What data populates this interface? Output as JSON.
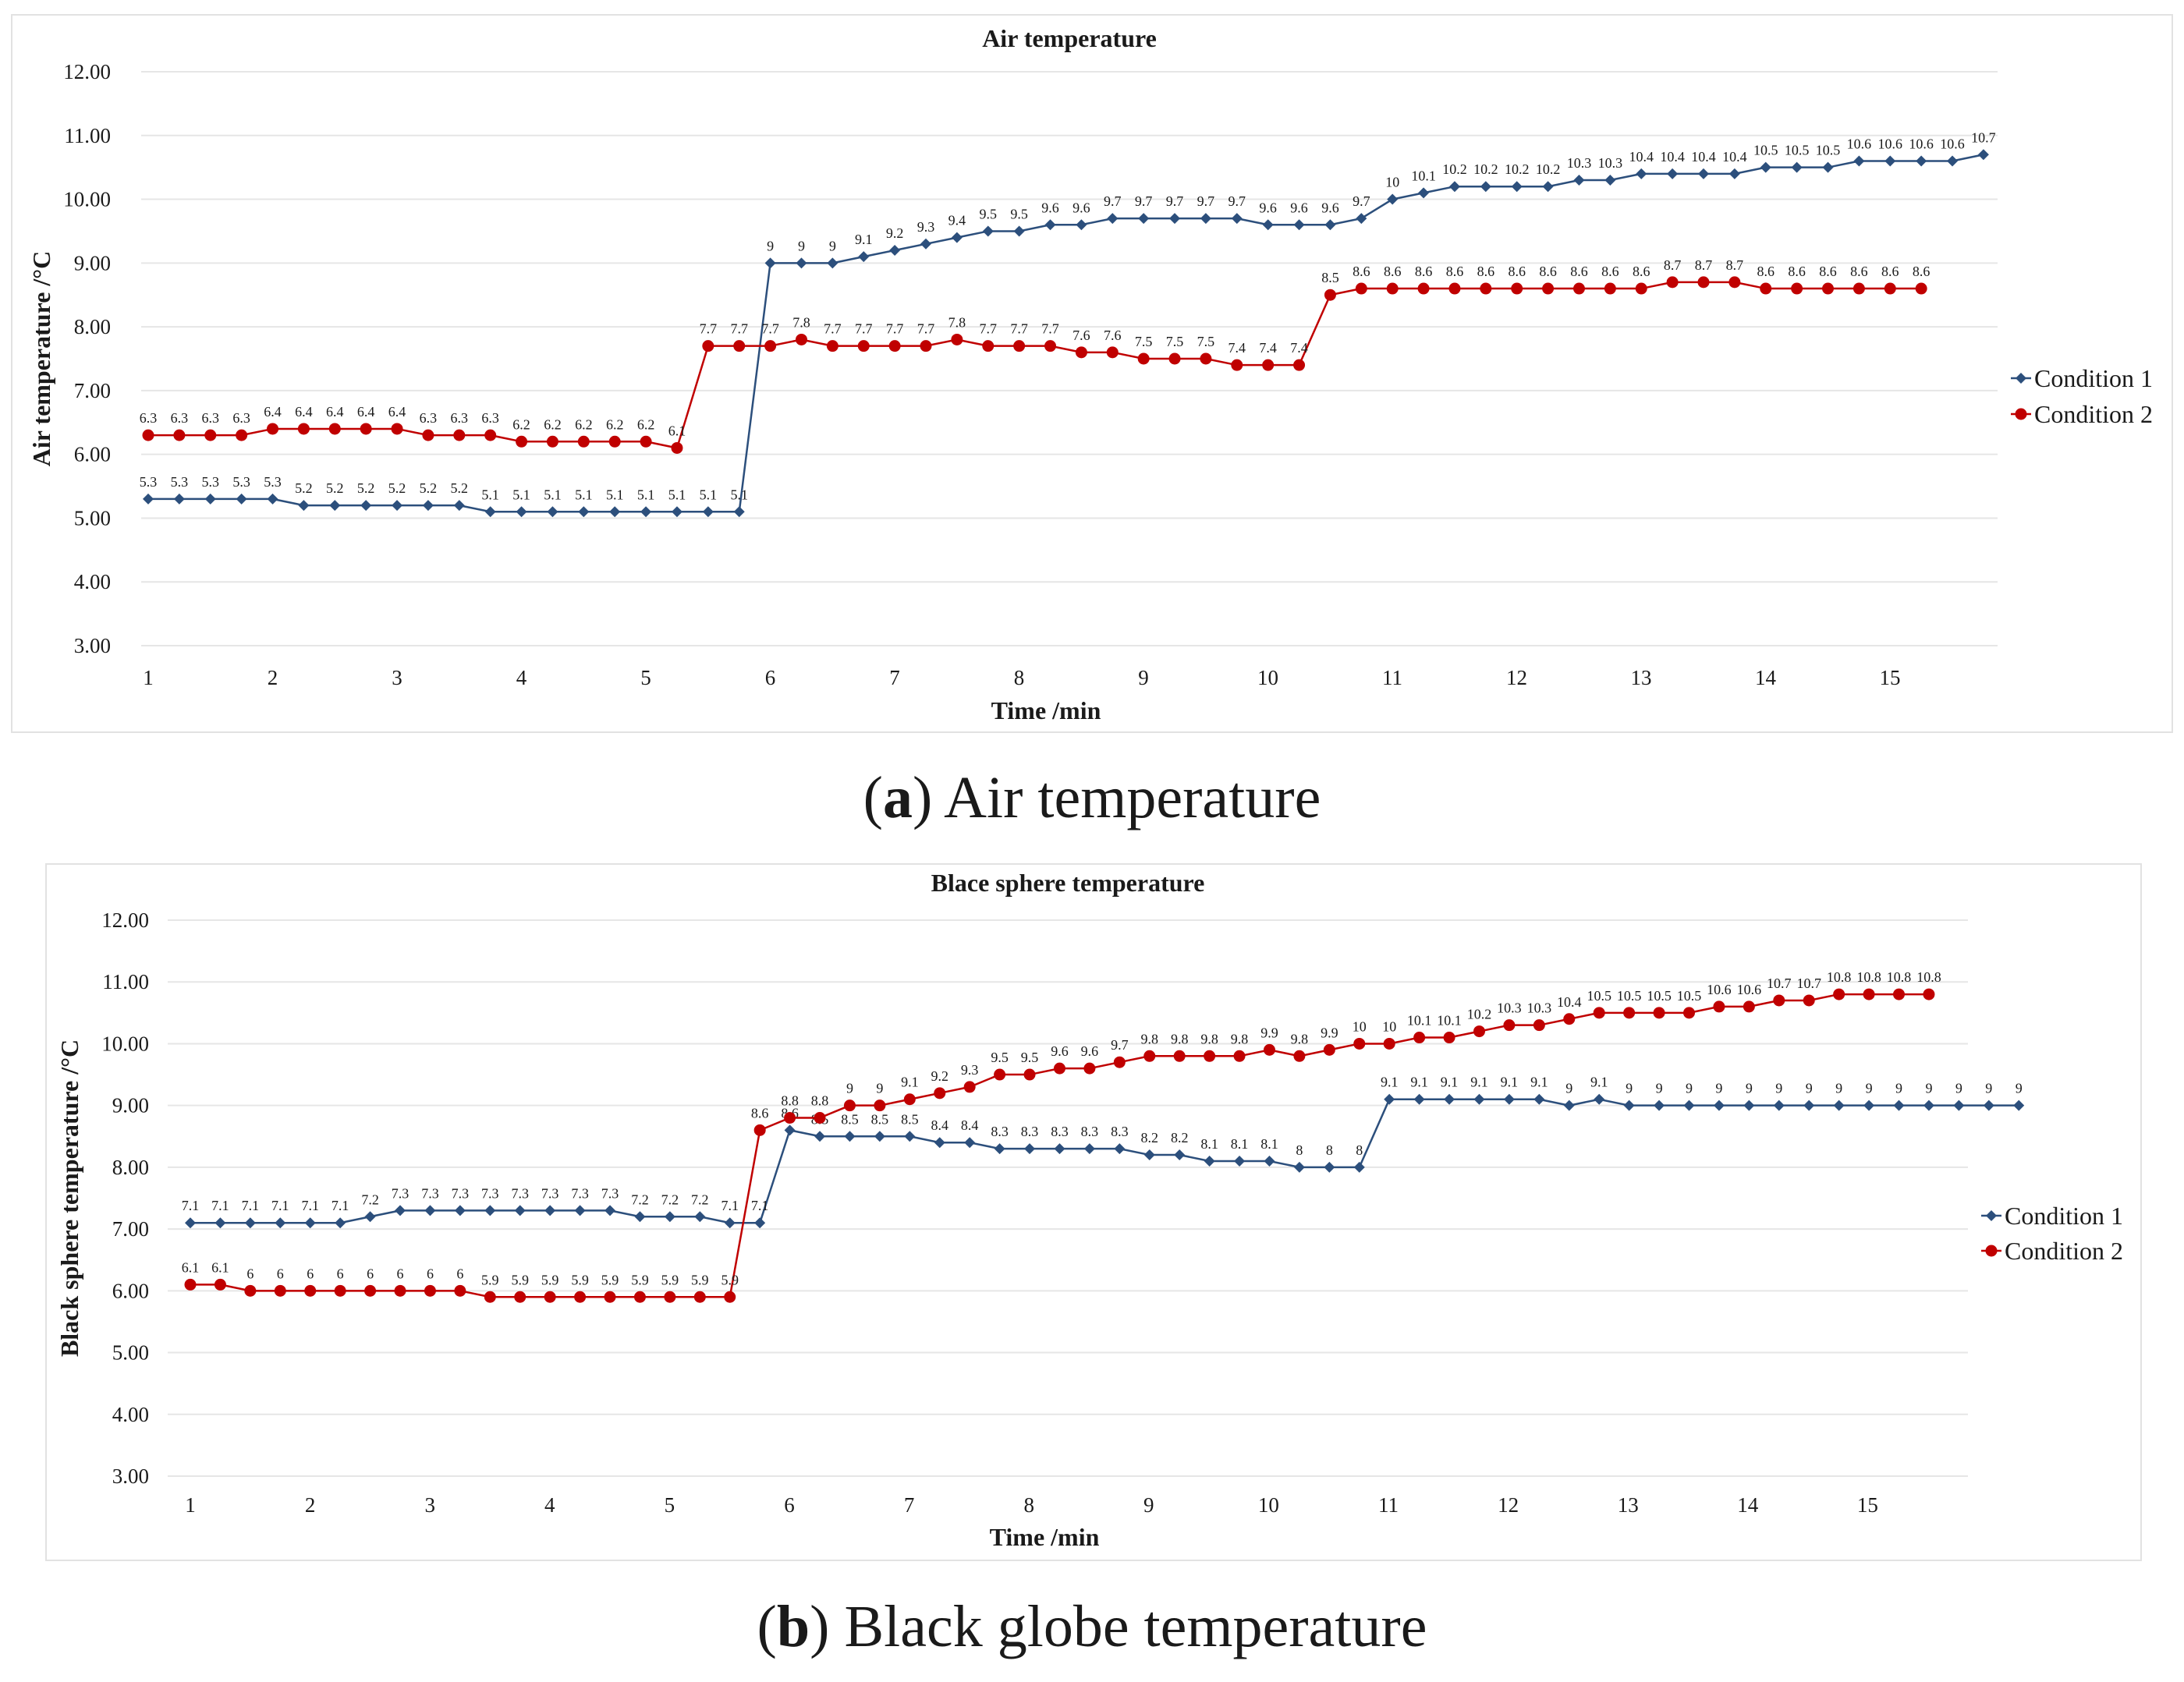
{
  "chart_data": [
    {
      "id": "air",
      "type": "line",
      "title": "Air temperature",
      "xlabel": "Time /min",
      "ylabel": "Air temperature /°C",
      "ylim": [
        3,
        12
      ],
      "yticks": [
        "3.00",
        "4.00",
        "5.00",
        "6.00",
        "7.00",
        "8.00",
        "9.00",
        "10.00",
        "11.00",
        "12.00"
      ],
      "xticks": [
        "1",
        "2",
        "3",
        "4",
        "5",
        "6",
        "7",
        "8",
        "9",
        "10",
        "11",
        "12",
        "13",
        "14",
        "15"
      ],
      "grid": true,
      "legend": "right",
      "series": [
        {
          "name": "Condition 1",
          "color": "#2c4f7c",
          "marker": "diamond",
          "labels_position": "above",
          "values": [
            5.3,
            5.3,
            5.3,
            5.3,
            5.3,
            5.2,
            5.2,
            5.2,
            5.2,
            5.2,
            5.2,
            5.1,
            5.1,
            5.1,
            5.1,
            5.1,
            5.1,
            5.1,
            5.1,
            5.1,
            9,
            9,
            9,
            9.1,
            9.2,
            9.3,
            9.4,
            9.5,
            9.5,
            9.6,
            9.6,
            9.7,
            9.7,
            9.7,
            9.7,
            9.7,
            9.6,
            9.6,
            9.6,
            9.7,
            10,
            10.1,
            10.2,
            10.2,
            10.2,
            10.2,
            10.3,
            10.3,
            10.4,
            10.4,
            10.4,
            10.4,
            10.5,
            10.5,
            10.5,
            10.6,
            10.6,
            10.6,
            10.6,
            10.7
          ]
        },
        {
          "name": "Condition 2",
          "color": "#c00000",
          "marker": "circle",
          "labels_position": "above",
          "values": [
            6.3,
            6.3,
            6.3,
            6.3,
            6.4,
            6.4,
            6.4,
            6.4,
            6.4,
            6.3,
            6.3,
            6.3,
            6.2,
            6.2,
            6.2,
            6.2,
            6.2,
            6.1,
            7.7,
            7.7,
            7.7,
            7.8,
            7.7,
            7.7,
            7.7,
            7.7,
            7.8,
            7.7,
            7.7,
            7.7,
            7.6,
            7.6,
            7.5,
            7.5,
            7.5,
            7.4,
            7.4,
            7.4,
            8.5,
            8.6,
            8.6,
            8.6,
            8.6,
            8.6,
            8.6,
            8.6,
            8.6,
            8.6,
            8.6,
            8.7,
            8.7,
            8.7,
            8.6,
            8.6,
            8.6,
            8.6,
            8.6,
            8.6
          ]
        }
      ]
    },
    {
      "id": "globe",
      "type": "line",
      "title": "Blace sphere temperature",
      "xlabel": "Time /min",
      "ylabel": "Black sphere temperature /°C",
      "ylim": [
        3,
        12
      ],
      "yticks": [
        "3.00",
        "4.00",
        "5.00",
        "6.00",
        "7.00",
        "8.00",
        "9.00",
        "10.00",
        "11.00",
        "12.00"
      ],
      "xticks": [
        "1",
        "2",
        "3",
        "4",
        "5",
        "6",
        "7",
        "8",
        "9",
        "10",
        "11",
        "12",
        "13",
        "14",
        "15"
      ],
      "grid": true,
      "legend": "right",
      "series": [
        {
          "name": "Condition 1",
          "color": "#2c4f7c",
          "marker": "diamond",
          "labels_position": "above",
          "values": [
            7.1,
            7.1,
            7.1,
            7.1,
            7.1,
            7.1,
            7.2,
            7.3,
            7.3,
            7.3,
            7.3,
            7.3,
            7.3,
            7.3,
            7.3,
            7.2,
            7.2,
            7.2,
            7.1,
            7.1,
            8.6,
            8.5,
            8.5,
            8.5,
            8.5,
            8.4,
            8.4,
            8.3,
            8.3,
            8.3,
            8.3,
            8.3,
            8.2,
            8.2,
            8.1,
            8.1,
            8.1,
            8,
            8,
            8,
            9.1,
            9.1,
            9.1,
            9.1,
            9.1,
            9.1,
            9,
            9.1,
            9,
            9,
            9,
            9,
            9,
            9,
            9,
            9,
            9,
            9,
            9,
            9,
            9,
            9
          ]
        },
        {
          "name": "Condition 2",
          "color": "#c00000",
          "marker": "circle",
          "labels_position": "above",
          "values": [
            6.1,
            6.1,
            6,
            6,
            6,
            6,
            6,
            6,
            6,
            6,
            5.9,
            5.9,
            5.9,
            5.9,
            5.9,
            5.9,
            5.9,
            5.9,
            5.9,
            8.6,
            8.8,
            8.8,
            9,
            9,
            9.1,
            9.2,
            9.3,
            9.5,
            9.5,
            9.6,
            9.6,
            9.7,
            9.8,
            9.8,
            9.8,
            9.8,
            9.9,
            9.8,
            9.9,
            10,
            10,
            10.1,
            10.1,
            10.2,
            10.3,
            10.3,
            10.4,
            10.5,
            10.5,
            10.5,
            10.5,
            10.6,
            10.6,
            10.7,
            10.7,
            10.8,
            10.8,
            10.8,
            10.8
          ]
        }
      ]
    }
  ],
  "captions": [
    {
      "letter": "a",
      "text": " Air temperature"
    },
    {
      "letter": "b",
      "text": " Black globe temperature"
    }
  ]
}
